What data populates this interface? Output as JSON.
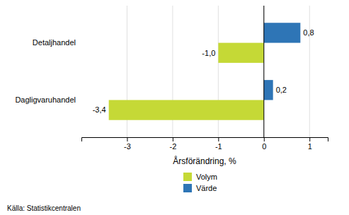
{
  "chart_data": {
    "type": "bar",
    "orientation": "horizontal",
    "categories": [
      "Dagligvaruhandel",
      "Detaljhandel"
    ],
    "series": [
      {
        "name": "Volym",
        "color": "#c5d936",
        "values": [
          -3.4,
          -1.0
        ],
        "value_labels": [
          "-3,4",
          "-1,0"
        ]
      },
      {
        "name": "Värde",
        "color": "#2e75b6",
        "values": [
          0.2,
          0.8
        ],
        "value_labels": [
          "0,2",
          "0,8"
        ]
      }
    ],
    "xlabel": "Årsförändring, %",
    "xlim": [
      -4.0,
      1.4
    ],
    "xticks": [
      -3,
      -2,
      -1,
      0,
      1
    ],
    "grid": true,
    "data_labels": true,
    "legend": "bottom",
    "annotations": [
      "Källa: Statistikcentralen"
    ]
  }
}
